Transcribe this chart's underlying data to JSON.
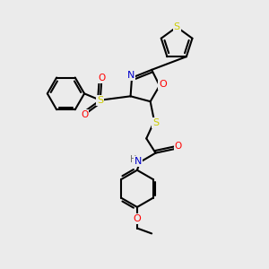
{
  "background_color": "#ebebeb",
  "bond_color": "#000000",
  "atom_colors": {
    "S": "#cccc00",
    "N": "#0000cc",
    "O": "#ff0000",
    "H": "#666666",
    "C": "#000000"
  },
  "figsize": [
    3.0,
    3.0
  ],
  "dpi": 100
}
